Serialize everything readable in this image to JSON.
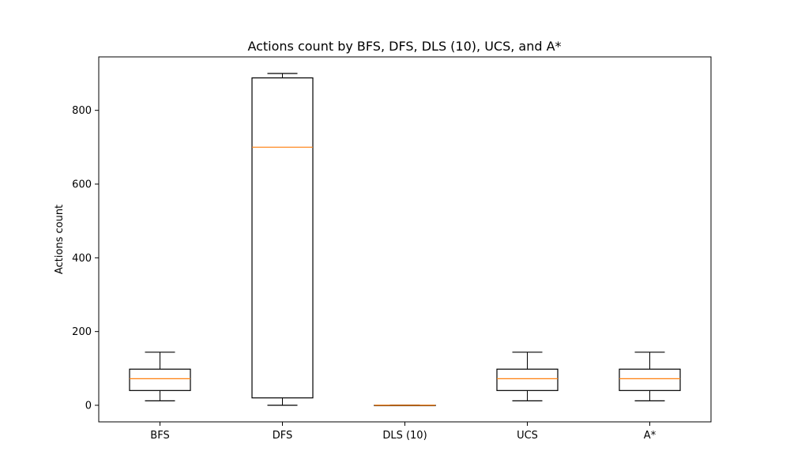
{
  "chart_data": {
    "type": "box",
    "title": "Actions count by BFS, DFS, DLS (10), UCS, and A*",
    "xlabel": "",
    "ylabel": "Actions count",
    "ylim": [
      -45,
      945
    ],
    "yticks": [
      0,
      200,
      400,
      600,
      800
    ],
    "grid": false,
    "legend": "none",
    "colors": {
      "box": "#000000",
      "median": "#ff7f0e"
    },
    "categories": [
      "BFS",
      "DFS",
      "DLS (10)",
      "UCS",
      "A*"
    ],
    "boxes": [
      {
        "name": "BFS",
        "whisker_low": 12,
        "q1": 40,
        "median": 72,
        "q3": 98,
        "whisker_high": 144
      },
      {
        "name": "DFS",
        "whisker_low": 0,
        "q1": 20,
        "median": 700,
        "q3": 888,
        "whisker_high": 900
      },
      {
        "name": "DLS (10)",
        "whisker_low": 0,
        "q1": 0,
        "median": 0,
        "q3": 0,
        "whisker_high": 0
      },
      {
        "name": "UCS",
        "whisker_low": 12,
        "q1": 40,
        "median": 72,
        "q3": 98,
        "whisker_high": 144
      },
      {
        "name": "A*",
        "whisker_low": 12,
        "q1": 40,
        "median": 72,
        "q3": 98,
        "whisker_high": 144
      }
    ]
  }
}
